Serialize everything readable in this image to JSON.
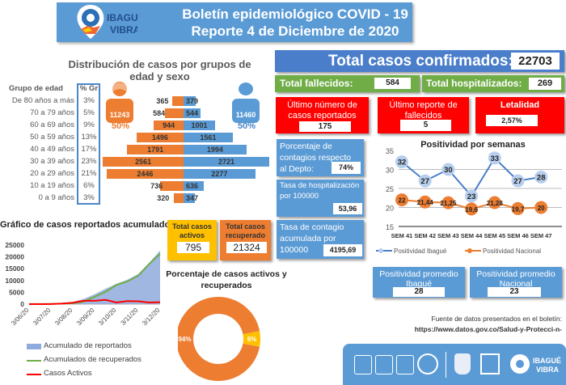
{
  "header": {
    "logo_text": "IBAGUÉ VIBRA",
    "title_line1": "Boletín epidemiológico COVID - 19",
    "title_line2": "Reporte 4 de Diciembre de 2020"
  },
  "pyramid": {
    "title_line1": "Distribución de casos por grupos de",
    "title_line2": "edad y sexo",
    "col_age": "Grupo de edad",
    "col_pct": "% Gr",
    "female_total": "11243",
    "female_pct": "50%",
    "male_total": "11460",
    "male_pct": "50%",
    "rows": [
      {
        "age": "De 80 años a más",
        "pct": "3%",
        "female": 365,
        "male": 379
      },
      {
        "age": "70 a 79 años",
        "pct": "5%",
        "female": 584,
        "male": 544
      },
      {
        "age": "60 a 69 años",
        "pct": "9%",
        "female": 944,
        "male": 1001
      },
      {
        "age": "50 a 59 años",
        "pct": "13%",
        "female": 1496,
        "male": 1561
      },
      {
        "age": "40 a 49 años",
        "pct": "17%",
        "female": 1791,
        "male": 1994
      },
      {
        "age": "30 a 39 años",
        "pct": "23%",
        "female": 2561,
        "male": 2721
      },
      {
        "age": "20 a 29 años",
        "pct": "21%",
        "female": 2446,
        "male": 2277
      },
      {
        "age": "10 a 19 años",
        "pct": "6%",
        "female": 736,
        "male": 636
      },
      {
        "age": "0 a 9 años",
        "pct": "3%",
        "female": 320,
        "male": 347
      }
    ]
  },
  "kpis": {
    "total_confirmed_label": "Total casos confirmados:",
    "total_confirmed": "22703",
    "deaths_label": "Total fallecidos:",
    "deaths": "584",
    "hosp_label": "Total hospitalizados:",
    "hosp": "269",
    "last_cases_label": "Último número de casos reportados",
    "last_cases": "175",
    "last_deaths_label": "Último reporte de fallecidos",
    "last_deaths": "5",
    "lethality_label": "Letalidad",
    "lethality": "2,57%",
    "pct_depto_label": "Porcentaje de contagios respecto al Depto:",
    "pct_depto": "74%",
    "hosp_rate_label": "Tasa de hospitalización por 100000",
    "hosp_rate": "53,96",
    "contagion_rate_label": "Tasa de contagio acumulada por 100000",
    "contagion_rate": "4195,69",
    "active_label": "Total casos activos",
    "active": "795",
    "recovered_label": "Total casos recuperado",
    "recovered": "21324",
    "pos_ibague_label": "Positividad promedio Ibagué",
    "pos_ibague": "28",
    "pos_nacional_label": "Positividad promedio Nacional",
    "pos_nacional": "23"
  },
  "source": {
    "line1": "Fuente de datos presentados en el boletín:",
    "line2": "https://www.datos.gov.co/Salud-y-Protecci-n-"
  },
  "footer": {
    "logo_text": "IBAGUÉ VIBRA"
  },
  "colors": {
    "blue": "#5b9bd5",
    "orange": "#ed7d31",
    "yellow": "#ffc000",
    "green": "#70ad47",
    "red": "#ff0000"
  },
  "chart_data": [
    {
      "type": "line",
      "title": "Positividad por semanas",
      "categories": [
        "SEM 41",
        "SEM 42",
        "SEM 43",
        "SEM 44",
        "SEM 45",
        "SEM 46",
        "SEM 47"
      ],
      "ylim": [
        15,
        35
      ],
      "yticks": [
        15,
        20,
        25,
        30,
        35
      ],
      "legend": "bottom",
      "series": [
        {
          "name": "Positividad Ibagué",
          "values": [
            32,
            27,
            30,
            23,
            33,
            27,
            28
          ],
          "labels": [
            "32",
            "27",
            "30",
            "23",
            "33",
            "27",
            "28"
          ]
        },
        {
          "name": "Positividad Nacional",
          "values": [
            22,
            21.44,
            21.25,
            19.6,
            21.28,
            19.7,
            20
          ],
          "labels": [
            "22",
            "21,44",
            "21,25",
            "19,6",
            "21,28",
            "19,7",
            "20"
          ]
        }
      ]
    },
    {
      "type": "area",
      "title": "Gráfico de casos reportados acumulado comparado con casos recuperados y",
      "categories": [
        "3/06/20",
        "3/07/20",
        "3/08/20",
        "3/09/20",
        "3/10/20",
        "3/11/20",
        "3/12/20"
      ],
      "ylim": [
        0,
        25000
      ],
      "yticks": [
        "0",
        "5000",
        "10000",
        "15000",
        "20000",
        "25000"
      ],
      "legend": "bottom",
      "x": [
        0,
        0.5,
        1,
        1.5,
        2,
        2.5,
        3,
        3.5,
        4,
        4.5,
        5,
        5.5,
        6
      ],
      "series": [
        {
          "name": "Acumulado de reportados",
          "values": [
            50,
            80,
            150,
            400,
            900,
            2200,
            4200,
            6500,
            8600,
            10300,
            12800,
            17500,
            22700
          ]
        },
        {
          "name": "Acumulados de recuperados",
          "values": [
            40,
            60,
            100,
            200,
            400,
            1000,
            3100,
            5200,
            8100,
            9600,
            12000,
            17000,
            21300
          ]
        },
        {
          "name": "Casos Activos",
          "values": [
            10,
            20,
            50,
            200,
            600,
            1400,
            1400,
            1800,
            700,
            1300,
            1200,
            700,
            800
          ]
        }
      ]
    },
    {
      "type": "pie",
      "title": "Porcentaje de casos activos y recuperados",
      "categories": [
        "Recuperados",
        "Activos"
      ],
      "values": [
        94,
        6
      ],
      "labels": [
        "94%",
        "6%"
      ]
    }
  ]
}
